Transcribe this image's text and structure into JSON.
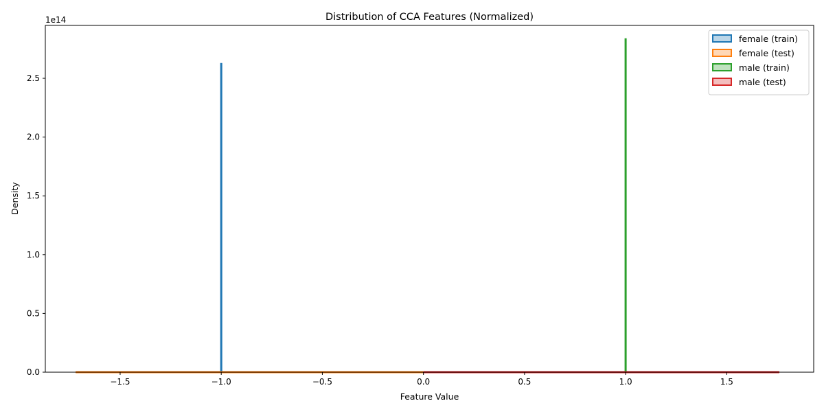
{
  "chart_data": {
    "type": "area",
    "title": "Distribution of CCA Features (Normalized)",
    "xlabel": "Feature Value",
    "ylabel": "Density",
    "y_offset_text": "1e14",
    "xlim": [
      -1.87,
      1.93
    ],
    "ylim": [
      0,
      2.95
    ],
    "x_ticks": [
      -1.5,
      -1.0,
      -0.5,
      0.0,
      0.5,
      1.0,
      1.5
    ],
    "x_tick_labels": [
      "−1.5",
      "−1.0",
      "−0.5",
      "0.0",
      "0.5",
      "1.0",
      "1.5"
    ],
    "y_ticks": [
      0,
      0.5,
      1.0,
      1.5,
      2.0,
      2.5
    ],
    "y_tick_labels": [
      "0.0",
      "0.5",
      "1.0",
      "1.5",
      "2.0",
      "2.5"
    ],
    "grid": false,
    "legend_position": "top-right",
    "series": [
      {
        "name": "female (train)",
        "color": "#1f77b4",
        "x": [
          -1.0,
          -1.0,
          -1.0
        ],
        "y": [
          0,
          2.63,
          0
        ],
        "baseline_range": [
          -1.72,
          0.0
        ]
      },
      {
        "name": "female (test)",
        "color": "#ff7f0e",
        "x": [
          -1.72,
          0.0
        ],
        "y": [
          0,
          0
        ],
        "baseline_range": [
          -1.72,
          0.0
        ]
      },
      {
        "name": "male (train)",
        "color": "#2ca02c",
        "x": [
          1.0,
          1.0,
          1.0
        ],
        "y": [
          0,
          2.84,
          0
        ],
        "baseline_range": [
          0.0,
          1.76
        ]
      },
      {
        "name": "male (test)",
        "color": "#d62728",
        "x": [
          0.0,
          1.76
        ],
        "y": [
          0,
          0
        ],
        "baseline_range": [
          0.0,
          1.76
        ]
      }
    ]
  }
}
